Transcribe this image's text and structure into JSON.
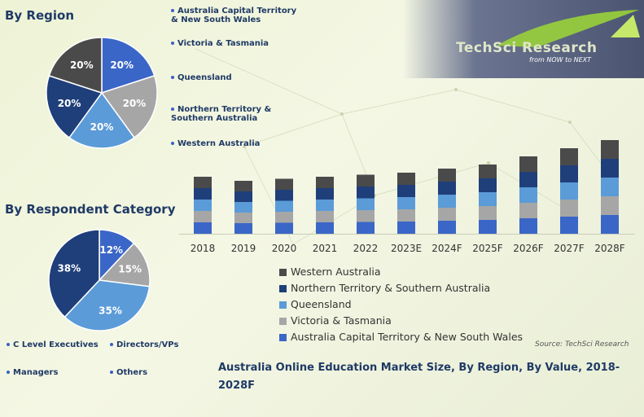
{
  "region": {
    "title": "By Region",
    "legend": [
      "Australia Capital Territory & New South Wales",
      "Victoria & Tasmania",
      "Queensland",
      "Northern Territory & Southern Australia",
      "Western Australia"
    ]
  },
  "respondent": {
    "title": "By Respondent Category",
    "legend": [
      "C Level Executives",
      "Directors/VPs",
      "Managers",
      "Others"
    ]
  },
  "logo": {
    "name": "TechSci Research",
    "tagline": "from NOW to NEXT"
  },
  "bar_legend": [
    "Western Australia",
    "Northern Territory & Southern Australia",
    "Queensland",
    "Victoria & Tasmania",
    "Australia Capital Territory & New South Wales"
  ],
  "source": "Source: TechSci Research",
  "main_title": "Australia Online Education Market Size, By Region, By Value, 2018-2028F",
  "colors": {
    "western": "#4a4a4a",
    "northern": "#1f3f7a",
    "queensland": "#5b9bd8",
    "victoria": "#a6a6a6",
    "act_nsw": "#3a66c7"
  },
  "chart_data": [
    {
      "type": "pie",
      "labels": [
        "Australia Capital Territory & New South Wales",
        "Victoria & Tasmania",
        "Queensland",
        "Northern Territory & Southern Australia",
        "Western Australia"
      ],
      "values": [
        20,
        20,
        20,
        20,
        20
      ],
      "value_labels": [
        "20%",
        "20%",
        "20%",
        "20%",
        "20%"
      ],
      "colors": [
        "#3a66c7",
        "#a6a6a6",
        "#5b9bd8",
        "#1f3f7a",
        "#4a4a4a"
      ],
      "title": "By Region"
    },
    {
      "type": "pie",
      "labels": [
        "C Level Executives",
        "Directors/VPs",
        "Managers",
        "Others"
      ],
      "values": [
        12,
        15,
        35,
        38
      ],
      "value_labels": [
        "12%",
        "15%",
        "35%",
        "38%"
      ],
      "colors": [
        "#3a66c7",
        "#a6a6a6",
        "#5b9bd8",
        "#1f3f7a"
      ],
      "title": "By Respondent Category"
    },
    {
      "type": "bar",
      "stacked": true,
      "categories": [
        "2018",
        "2019",
        "2020",
        "2021",
        "2022",
        "2023E",
        "2024F",
        "2025F",
        "2026F",
        "2027F",
        "2028F"
      ],
      "series": [
        {
          "name": "Australia Capital Territory & New South Wales",
          "color": "#3a66c7",
          "values": [
            14,
            13,
            13.5,
            14,
            14.5,
            15,
            16,
            17,
            19,
            21,
            23
          ]
        },
        {
          "name": "Victoria & Tasmania",
          "color": "#a6a6a6",
          "values": [
            14,
            13,
            13.5,
            14,
            14.5,
            15,
            16,
            17,
            19,
            21,
            23
          ]
        },
        {
          "name": "Queensland",
          "color": "#5b9bd8",
          "values": [
            14,
            13,
            13.5,
            14,
            14.5,
            15,
            16,
            17,
            19,
            21,
            23
          ]
        },
        {
          "name": "Northern Territory & Southern Australia",
          "color": "#1f3f7a",
          "values": [
            14,
            13,
            13.5,
            14,
            14.5,
            15,
            16,
            17,
            19,
            21,
            23
          ]
        },
        {
          "name": "Western Australia",
          "color": "#4a4a4a",
          "values": [
            14,
            13,
            13.5,
            14,
            14.5,
            15,
            16,
            17,
            19,
            21,
            23
          ]
        }
      ],
      "legend_placement": "bottom",
      "grid": false,
      "ylim": [
        0,
        130
      ]
    }
  ]
}
